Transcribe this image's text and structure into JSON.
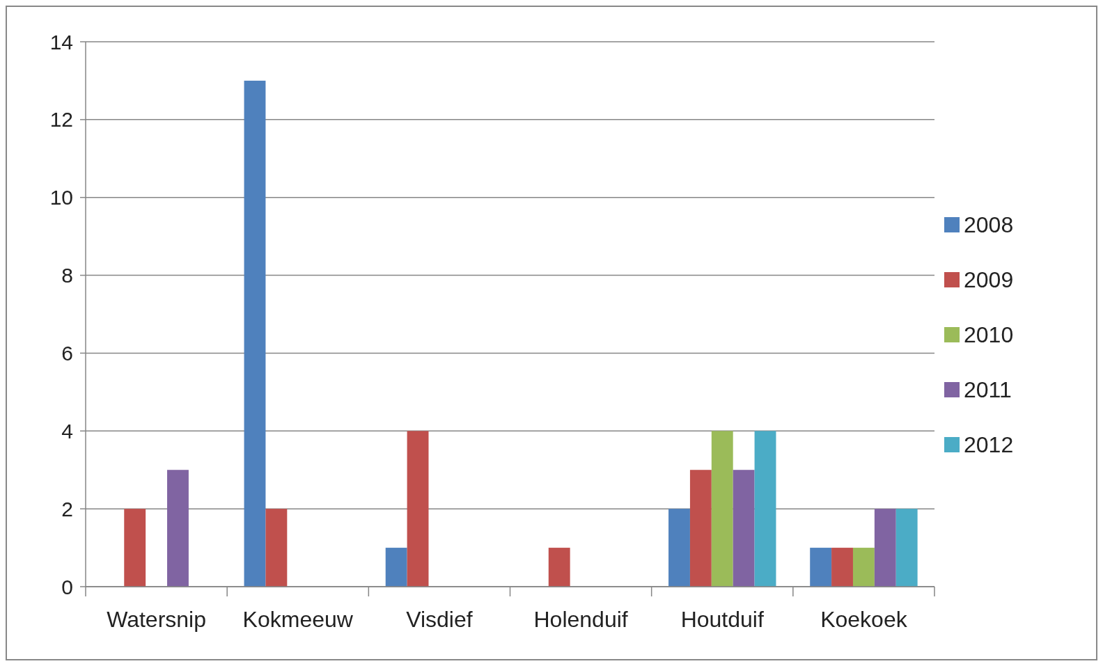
{
  "chart_data": {
    "type": "bar",
    "categories": [
      "Watersnip",
      "Kokmeeuw",
      "Visdief",
      "Holenduif",
      "Houtduif",
      "Koekoek"
    ],
    "series": [
      {
        "name": "2008",
        "color": "#4f81bd",
        "values": [
          0,
          13,
          1,
          0,
          2,
          1
        ]
      },
      {
        "name": "2009",
        "color": "#c0504d",
        "values": [
          2,
          2,
          4,
          1,
          3,
          1
        ]
      },
      {
        "name": "2010",
        "color": "#9bbb59",
        "values": [
          0,
          0,
          0,
          0,
          4,
          1
        ]
      },
      {
        "name": "2011",
        "color": "#8064a2",
        "values": [
          3,
          0,
          0,
          0,
          3,
          2
        ]
      },
      {
        "name": "2012",
        "color": "#4bacc6",
        "values": [
          0,
          0,
          0,
          0,
          4,
          2
        ]
      }
    ],
    "ylim": [
      0,
      14
    ],
    "yticks": [
      0,
      2,
      4,
      6,
      8,
      10,
      12,
      14
    ],
    "grid": "y",
    "legend": "right"
  }
}
